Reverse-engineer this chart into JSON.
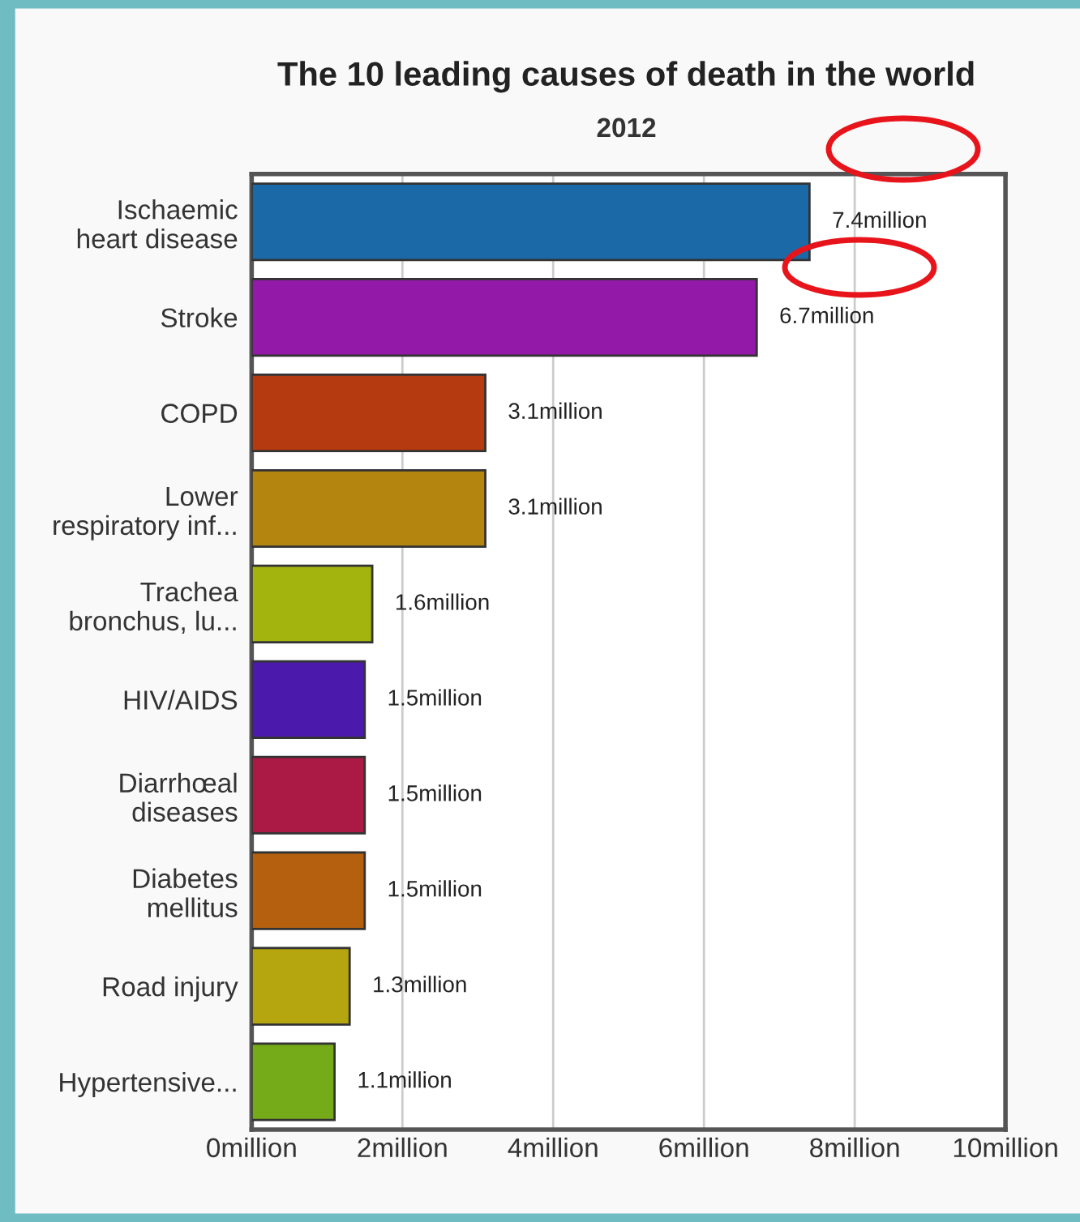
{
  "chart_data": {
    "type": "bar",
    "orientation": "horizontal",
    "title": "The 10 leading causes of death in the world",
    "subtitle": "2012",
    "categories": [
      "Ischaemic\nheart disease",
      "Stroke",
      "COPD",
      "Lower\nrespiratory inf...",
      "Trachea\nbronchus, lu...",
      "HIV/AIDS",
      "Diarrhœal\ndiseases",
      "Diabetes\nmellitus",
      "Road injury",
      "Hypertensive..."
    ],
    "values": [
      7.4,
      6.7,
      3.1,
      3.1,
      1.6,
      1.5,
      1.5,
      1.5,
      1.3,
      1.1
    ],
    "colors": [
      "#1c69a8",
      "#9319a8",
      "#b53a10",
      "#b5860f",
      "#a4b40f",
      "#4b19ab",
      "#ab1945",
      "#b5600f",
      "#b5a50f",
      "#75aa18"
    ],
    "value_labels": [
      "7.4million",
      "6.7million",
      "3.1million",
      "3.1million",
      "1.6million",
      "1.5million",
      "1.5million",
      "1.5million",
      "1.3million",
      "1.1million"
    ],
    "xlim": [
      0,
      10
    ],
    "xticks": [
      {
        "value": 0,
        "label": "0million"
      },
      {
        "value": 2,
        "label": "2million"
      },
      {
        "value": 4,
        "label": "4million"
      },
      {
        "value": 6,
        "label": "6million"
      },
      {
        "value": 8,
        "label": "8million"
      },
      {
        "value": 10,
        "label": "10million"
      }
    ],
    "grid": "x"
  }
}
